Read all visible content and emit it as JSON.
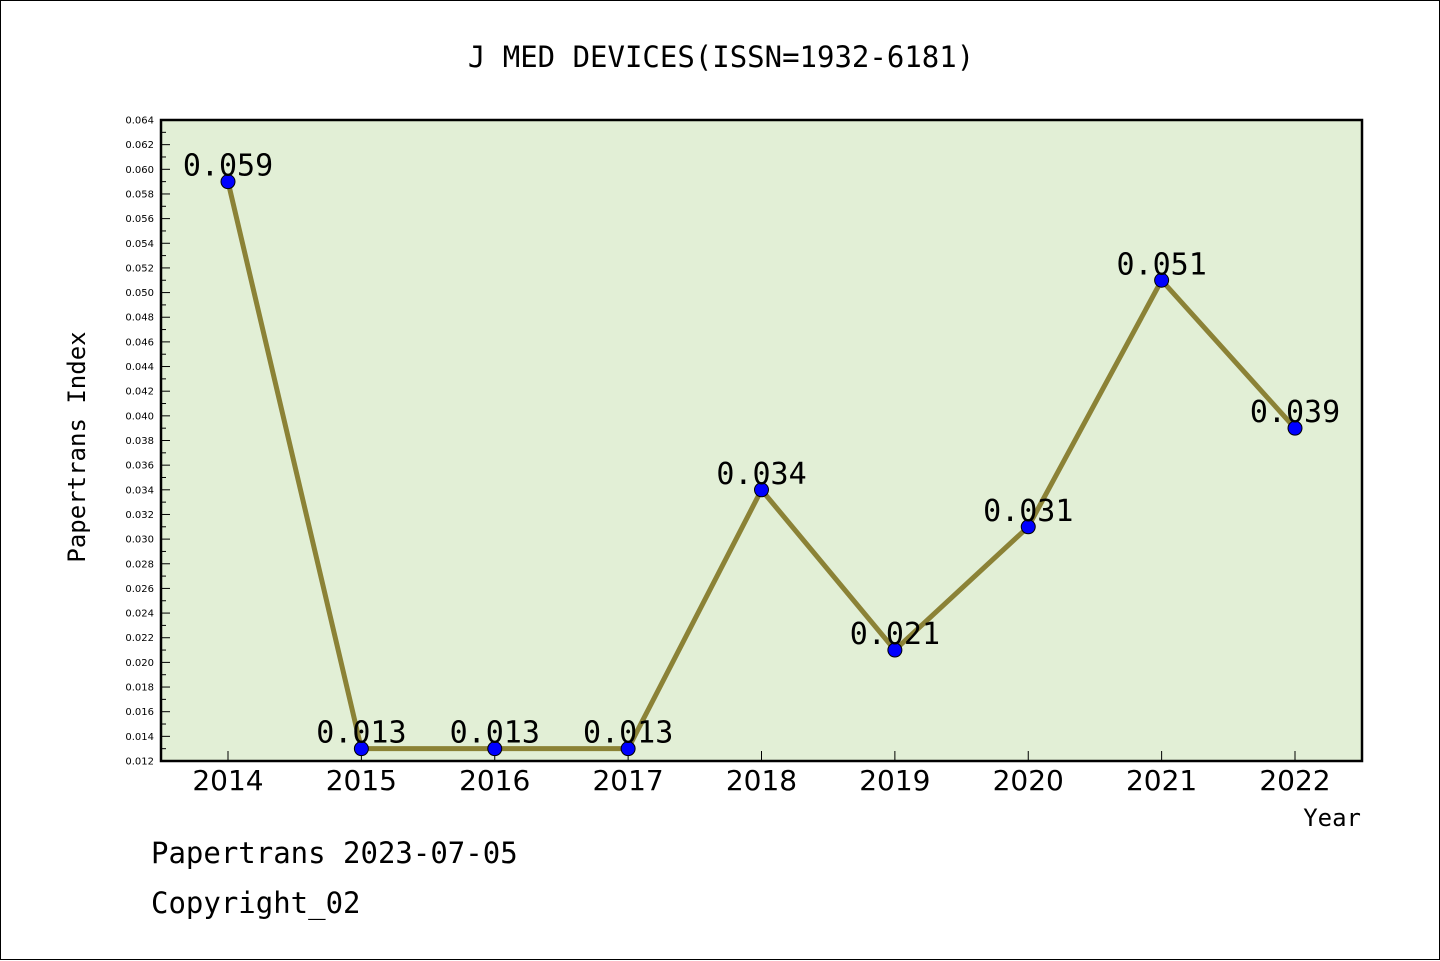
{
  "chart_data": {
    "type": "line",
    "title": "J MED DEVICES(ISSN=1932-6181)",
    "xlabel": "Year",
    "ylabel": "Papertrans Index",
    "categories": [
      "2014",
      "2015",
      "2016",
      "2017",
      "2018",
      "2019",
      "2020",
      "2021",
      "2022"
    ],
    "series": [
      {
        "values": [
          0.059,
          0.013,
          0.013,
          0.013,
          0.034,
          0.021,
          0.031,
          0.051,
          0.039
        ],
        "labels": [
          "0.059",
          "0.013",
          "0.013",
          "0.013",
          "0.034",
          "0.021",
          "0.031",
          "0.051",
          "0.039"
        ]
      }
    ],
    "ylim": [
      0.012,
      0.064
    ],
    "yticks": [
      "0.012",
      "0.014",
      "0.016",
      "0.018",
      "0.020",
      "0.022",
      "0.024",
      "0.026",
      "0.028",
      "0.030",
      "0.032",
      "0.034",
      "0.036",
      "0.038",
      "0.040",
      "0.042",
      "0.044",
      "0.046",
      "0.048",
      "0.050",
      "0.052",
      "0.054",
      "0.056",
      "0.058",
      "0.060",
      "0.062",
      "0.064"
    ],
    "grid": false,
    "colors": {
      "plot_background": "#e2efd6",
      "line": "#8b8236",
      "marker": "#0000ff"
    }
  },
  "footer": {
    "line1": "Papertrans 2023-07-05",
    "line2": "Copyright_02"
  }
}
